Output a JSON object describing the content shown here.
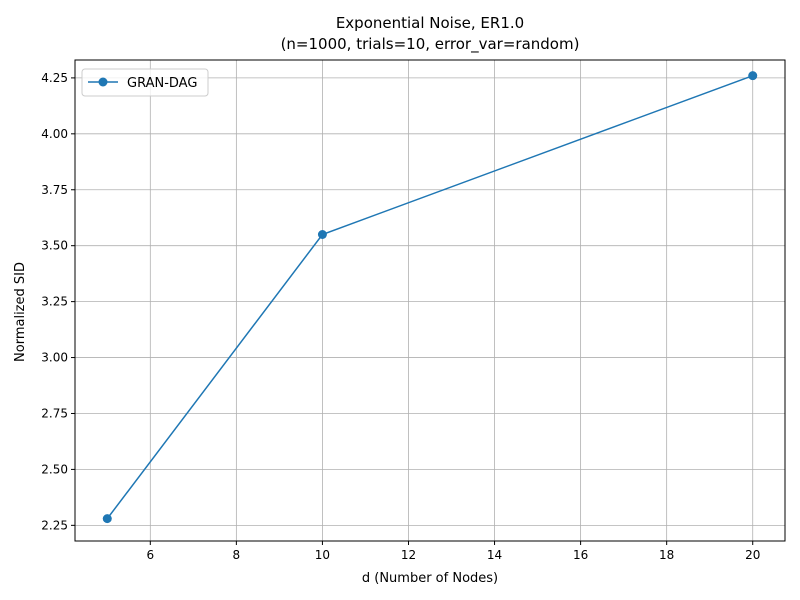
{
  "chart_data": {
    "type": "line",
    "title": "Exponential Noise, ER1.0",
    "subtitle": "(n=1000, trials=10, error_var=random)",
    "xlabel": "d (Number of Nodes)",
    "ylabel": "Normalized SID",
    "xlim": [
      4.25,
      20.75
    ],
    "ylim": [
      2.18,
      4.33
    ],
    "xticks": [
      6,
      8,
      10,
      12,
      14,
      16,
      18,
      20
    ],
    "yticks": [
      2.25,
      2.5,
      2.75,
      3.0,
      3.25,
      3.5,
      3.75,
      4.0,
      4.25
    ],
    "ytick_labels": [
      "2.25",
      "2.50",
      "2.75",
      "3.00",
      "3.25",
      "3.50",
      "3.75",
      "4.00",
      "4.25"
    ],
    "grid": true,
    "legend_position": "upper-left",
    "series": [
      {
        "name": "GRAN-DAG",
        "color": "#1f77b4",
        "marker": "circle",
        "x": [
          5,
          10,
          20
        ],
        "y": [
          2.28,
          3.55,
          4.26
        ]
      }
    ]
  }
}
